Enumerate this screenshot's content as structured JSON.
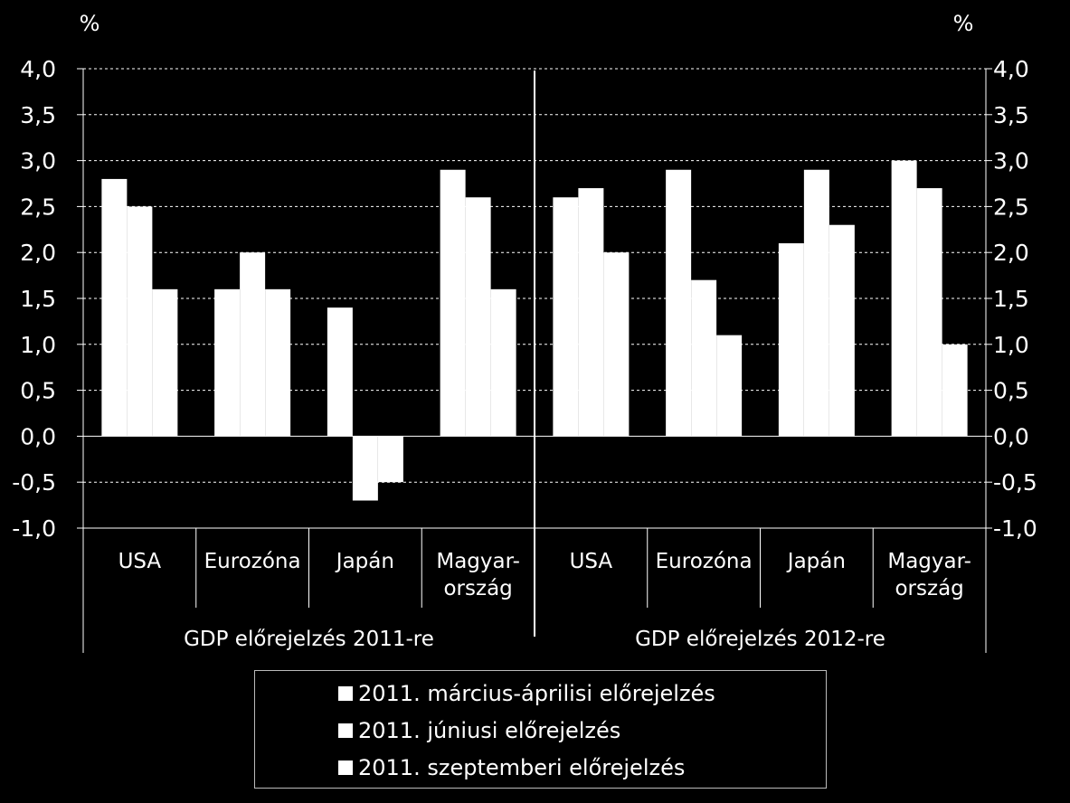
{
  "chart_data": {
    "type": "bar",
    "y_unit_left": "%",
    "y_unit_right": "%",
    "ylim": [
      -1.0,
      4.0
    ],
    "ytick_step": 0.5,
    "ytick_labels": [
      "4,0",
      "3,5",
      "3,0",
      "2,5",
      "2,0",
      "1,5",
      "1,0",
      "0,5",
      "0,0",
      "-0,5",
      "-1,0"
    ],
    "grid": true,
    "legend_position": "bottom",
    "groups": [
      {
        "label": "GDP előrejelzés 2011-re",
        "categories": [
          {
            "label": [
              "USA"
            ],
            "values": [
              2.8,
              2.5,
              1.6
            ]
          },
          {
            "label": [
              "Eurozóna"
            ],
            "values": [
              1.6,
              2.0,
              1.6
            ]
          },
          {
            "label": [
              "Japán"
            ],
            "values": [
              1.4,
              -0.7,
              -0.5
            ]
          },
          {
            "label": [
              "Magyar-",
              "ország"
            ],
            "values": [
              2.9,
              2.6,
              1.6
            ]
          }
        ]
      },
      {
        "label": "GDP előrejelzés 2012-re",
        "categories": [
          {
            "label": [
              "USA"
            ],
            "values": [
              2.6,
              2.7,
              2.0
            ]
          },
          {
            "label": [
              "Eurozóna"
            ],
            "values": [
              2.9,
              1.7,
              1.1
            ]
          },
          {
            "label": [
              "Japán"
            ],
            "values": [
              2.1,
              2.9,
              2.3
            ]
          },
          {
            "label": [
              "Magyar-",
              "ország"
            ],
            "values": [
              3.0,
              2.7,
              1.0
            ]
          }
        ]
      }
    ],
    "series": [
      {
        "name": "2011. március-áprilisi előrejelzés",
        "color": "#ffffff"
      },
      {
        "name": "2011. júniusi előrejelzés",
        "color": "#ffffff"
      },
      {
        "name": "2011. szeptemberi előrejelzés",
        "color": "#ffffff"
      }
    ]
  }
}
